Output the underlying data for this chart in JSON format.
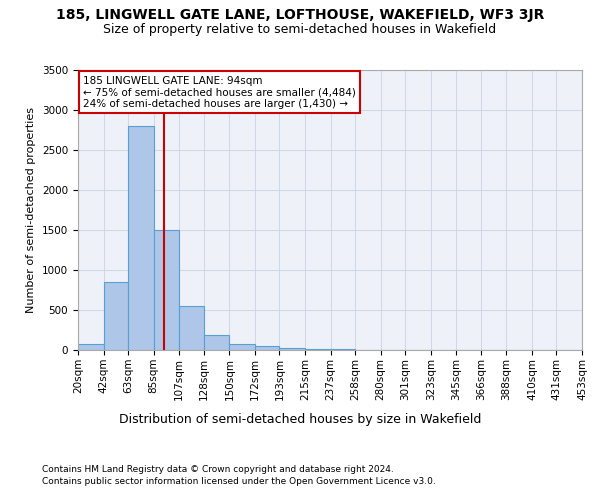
{
  "title1": "185, LINGWELL GATE LANE, LOFTHOUSE, WAKEFIELD, WF3 3JR",
  "title2": "Size of property relative to semi-detached houses in Wakefield",
  "xlabel": "Distribution of semi-detached houses by size in Wakefield",
  "ylabel": "Number of semi-detached properties",
  "footnote1": "Contains HM Land Registry data © Crown copyright and database right 2024.",
  "footnote2": "Contains public sector information licensed under the Open Government Licence v3.0.",
  "annotation_title": "185 LINGWELL GATE LANE: 94sqm",
  "annotation_line1": "← 75% of semi-detached houses are smaller (4,484)",
  "annotation_line2": "24% of semi-detached houses are larger (1,430) →",
  "property_size": 94,
  "bar_left_edges": [
    20,
    42,
    63,
    85,
    107,
    128,
    150,
    172,
    193,
    215,
    237,
    258,
    280,
    301,
    323,
    345,
    366,
    388,
    410,
    431
  ],
  "bar_widths": [
    22,
    21,
    22,
    22,
    21,
    22,
    22,
    21,
    22,
    22,
    21,
    22,
    21,
    22,
    22,
    21,
    22,
    22,
    21,
    22
  ],
  "bar_heights": [
    75,
    850,
    2800,
    1500,
    550,
    190,
    80,
    55,
    30,
    15,
    8,
    5,
    3,
    2,
    2,
    1,
    1,
    1,
    1,
    1
  ],
  "bar_color": "#aec6e8",
  "bar_edge_color": "#5a9fd4",
  "red_line_color": "#cc0000",
  "annotation_box_edge": "#cc0000",
  "ylim": [
    0,
    3500
  ],
  "yticks": [
    0,
    500,
    1000,
    1500,
    2000,
    2500,
    3000,
    3500
  ],
  "xtick_labels": [
    "20sqm",
    "42sqm",
    "63sqm",
    "85sqm",
    "107sqm",
    "128sqm",
    "150sqm",
    "172sqm",
    "193sqm",
    "215sqm",
    "237sqm",
    "258sqm",
    "280sqm",
    "301sqm",
    "323sqm",
    "345sqm",
    "366sqm",
    "388sqm",
    "410sqm",
    "431sqm",
    "453sqm"
  ],
  "grid_color": "#d0d8e8",
  "bg_color": "#eef2f8",
  "title1_fontsize": 10,
  "title2_fontsize": 9,
  "xlabel_fontsize": 9,
  "ylabel_fontsize": 8,
  "tick_fontsize": 7.5,
  "annotation_fontsize": 7.5,
  "footnote_fontsize": 6.5
}
